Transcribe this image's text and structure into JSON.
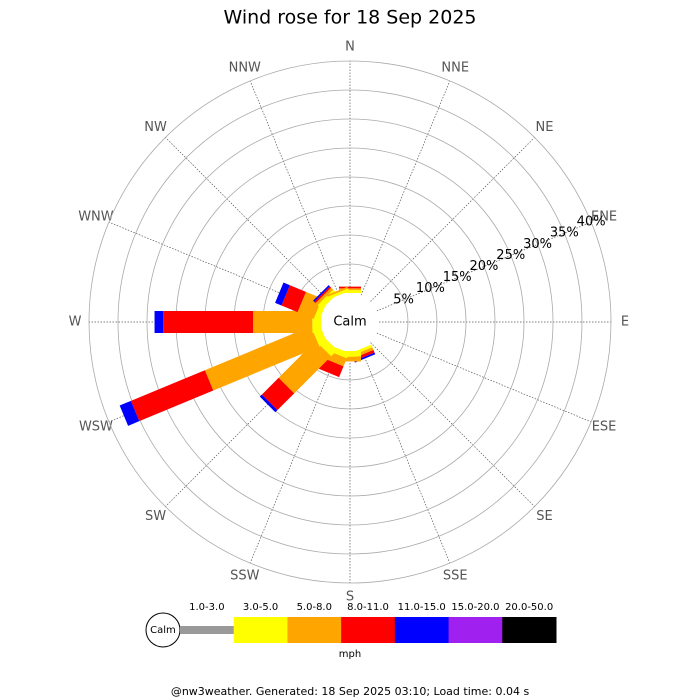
{
  "chart_data": {
    "type": "wind-rose",
    "title": "Wind rose for 18 Sep 2025",
    "categories": [
      "N",
      "NNE",
      "NE",
      "ENE",
      "E",
      "ESE",
      "SE",
      "SSE",
      "S",
      "SSW",
      "SW",
      "WSW",
      "W",
      "WNW",
      "NW",
      "NNW"
    ],
    "center_label": "Calm",
    "rlim": [
      0,
      40
    ],
    "rticks": [
      {
        "value": 5,
        "label": "5%"
      },
      {
        "value": 10,
        "label": "10%"
      },
      {
        "value": 15,
        "label": "15%"
      },
      {
        "value": 20,
        "label": "20%"
      },
      {
        "value": 25,
        "label": "25%"
      },
      {
        "value": 30,
        "label": "30%"
      },
      {
        "value": 35,
        "label": "35%"
      },
      {
        "value": 40,
        "label": "40%"
      }
    ],
    "series": [
      {
        "name": "1.0-3.0",
        "color": "#999999",
        "values": [
          0,
          0,
          0,
          0,
          0,
          0,
          0,
          0,
          0,
          0,
          0,
          0,
          0,
          0,
          0,
          0
        ]
      },
      {
        "name": "3.0-5.0",
        "color": "#ffff00",
        "values": [
          0.5,
          0,
          0,
          0,
          0,
          0,
          0,
          0.5,
          1,
          1,
          1.5,
          1.5,
          1.5,
          1,
          1,
          0.5
        ]
      },
      {
        "name": "5.0-8.0",
        "color": "#ffa500",
        "values": [
          0.3,
          0,
          0,
          0,
          0,
          0,
          0,
          0.5,
          0.8,
          1.5,
          9,
          19.8,
          10.2,
          3,
          0.5,
          0.3
        ]
      },
      {
        "name": "8.0-11.0",
        "color": "#ff0000",
        "values": [
          0.3,
          0,
          0,
          0,
          0,
          0,
          0,
          0.5,
          0,
          2,
          4.1,
          13.8,
          15.5,
          3,
          0.3,
          0
        ]
      },
      {
        "name": "11.0-15.0",
        "color": "#0000ff",
        "values": [
          0,
          0,
          0,
          0,
          0,
          0,
          0,
          0.3,
          0,
          0,
          0.5,
          2.1,
          1.5,
          1.2,
          0.3,
          0
        ]
      },
      {
        "name": "15.0-20.0",
        "color": "#a020f0",
        "values": [
          0,
          0,
          0,
          0,
          0,
          0,
          0,
          0,
          0,
          0,
          0,
          0,
          0,
          0,
          0,
          0
        ]
      },
      {
        "name": "20.0-50.0",
        "color": "#000000",
        "values": [
          0,
          0,
          0,
          0,
          0,
          0,
          0,
          0,
          0,
          0,
          0,
          0,
          0,
          0,
          0,
          0
        ]
      }
    ],
    "legend_unit": "mph",
    "footer": "@nw3weather. Generated: 18 Sep 2025 03:10; Load time: 0.04 s"
  }
}
